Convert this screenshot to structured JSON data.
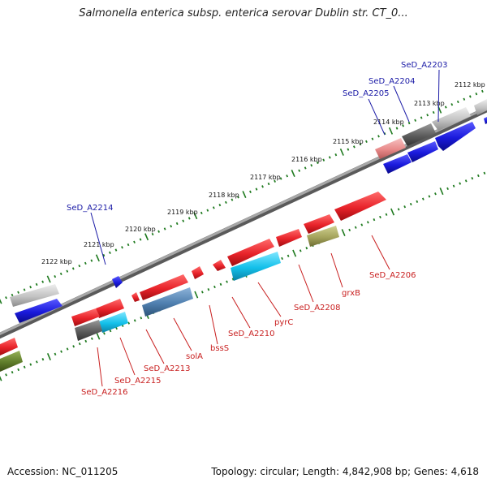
{
  "title": "Salmonella enterica subsp. enterica serovar Dublin str. CT_0...",
  "footer": {
    "accession": "Accession: NC_011205",
    "topology": "Topology: circular; Length: 4,842,908 bp; Genes: 4,618"
  },
  "colors": {
    "red": "#e8232a",
    "blue": "#1a1adc",
    "cyan": "#13c0ea",
    "steelblue": "#4f7faf",
    "darkgray": "#5c5c5c",
    "lightgray": "#bfbfbf",
    "olive": "#a5a45c",
    "green": "#5f7d2a",
    "pink": "#e88a8a",
    "tick": "#1f7a1f",
    "label_blue": "#1a1aa6",
    "label_red": "#c81e1e"
  },
  "ticks": [
    "2112 kbp",
    "2113 kbp",
    "2114 kbp",
    "2115 kbp",
    "2116 kbp",
    "2117 kbp",
    "2118 kbp",
    "2119 kbp",
    "2120 kbp",
    "2121 kbp",
    "2122 kbp"
  ],
  "genes": {
    "top_labels": [
      "SeD_A2203",
      "SeD_A2204",
      "SeD_A2205",
      "SeD_A2214"
    ],
    "bottom_labels": [
      "SeD_A2206",
      "grxB",
      "SeD_A2208",
      "pyrC",
      "SeD_A2210",
      "bssS",
      "solA",
      "SeD_A2213",
      "SeD_A2215",
      "SeD_A2216"
    ]
  }
}
